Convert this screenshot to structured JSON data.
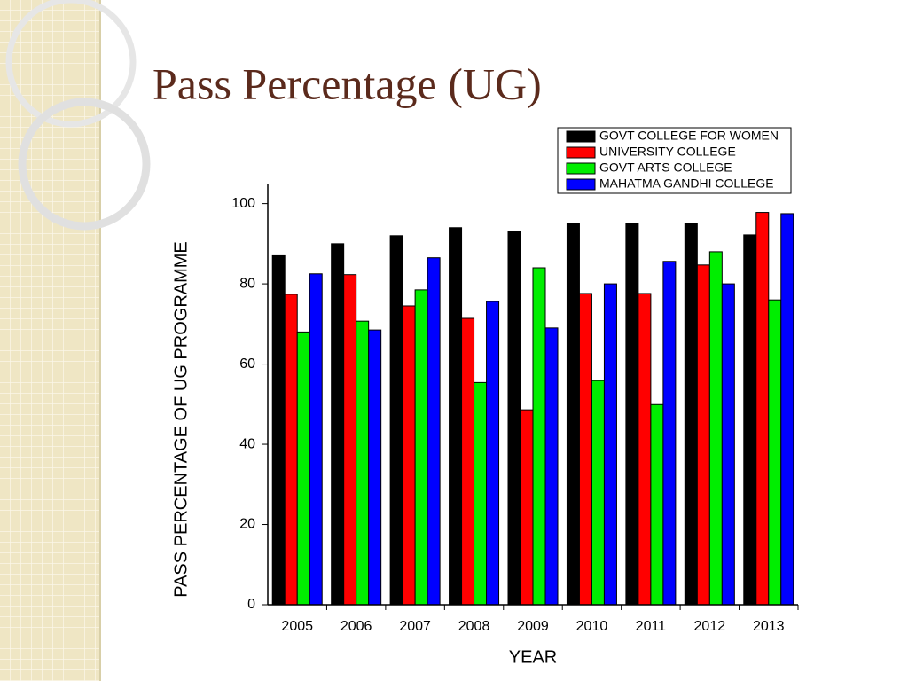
{
  "chart_data": {
    "type": "bar",
    "title": "Pass Percentage (UG)",
    "categories": [
      "2005",
      "2006",
      "2007",
      "2008",
      "2009",
      "2010",
      "2011",
      "2012",
      "2013"
    ],
    "series": [
      {
        "name": "GOVT COLLEGE FOR WOMEN",
        "color": "#000000",
        "values": [
          87,
          90,
          92,
          94,
          93,
          95,
          95,
          95,
          92.2
        ]
      },
      {
        "name": "UNIVERSITY COLLEGE",
        "color": "#ff0000",
        "values": [
          77.4,
          82.3,
          74.5,
          71.4,
          48.6,
          77.6,
          77.6,
          84.7,
          97.8
        ]
      },
      {
        "name": "GOVT ARTS COLLEGE",
        "color": "#00ee00",
        "values": [
          68,
          70.7,
          78.5,
          55.4,
          84,
          55.9,
          49.9,
          88,
          76
        ]
      },
      {
        "name": "MAHATMA GANDHI COLLEGE",
        "color": "#0000ff",
        "values": [
          82.5,
          68.5,
          86.5,
          75.6,
          69,
          80,
          85.6,
          80,
          97.5
        ]
      }
    ],
    "x_label": "YEAR",
    "y_label": "PASS PERCENTAGE OF UG PROGRAMME",
    "ylim": [
      0,
      105
    ],
    "yticks": [
      0,
      20,
      40,
      60,
      80,
      100
    ],
    "legend": "top-right"
  }
}
